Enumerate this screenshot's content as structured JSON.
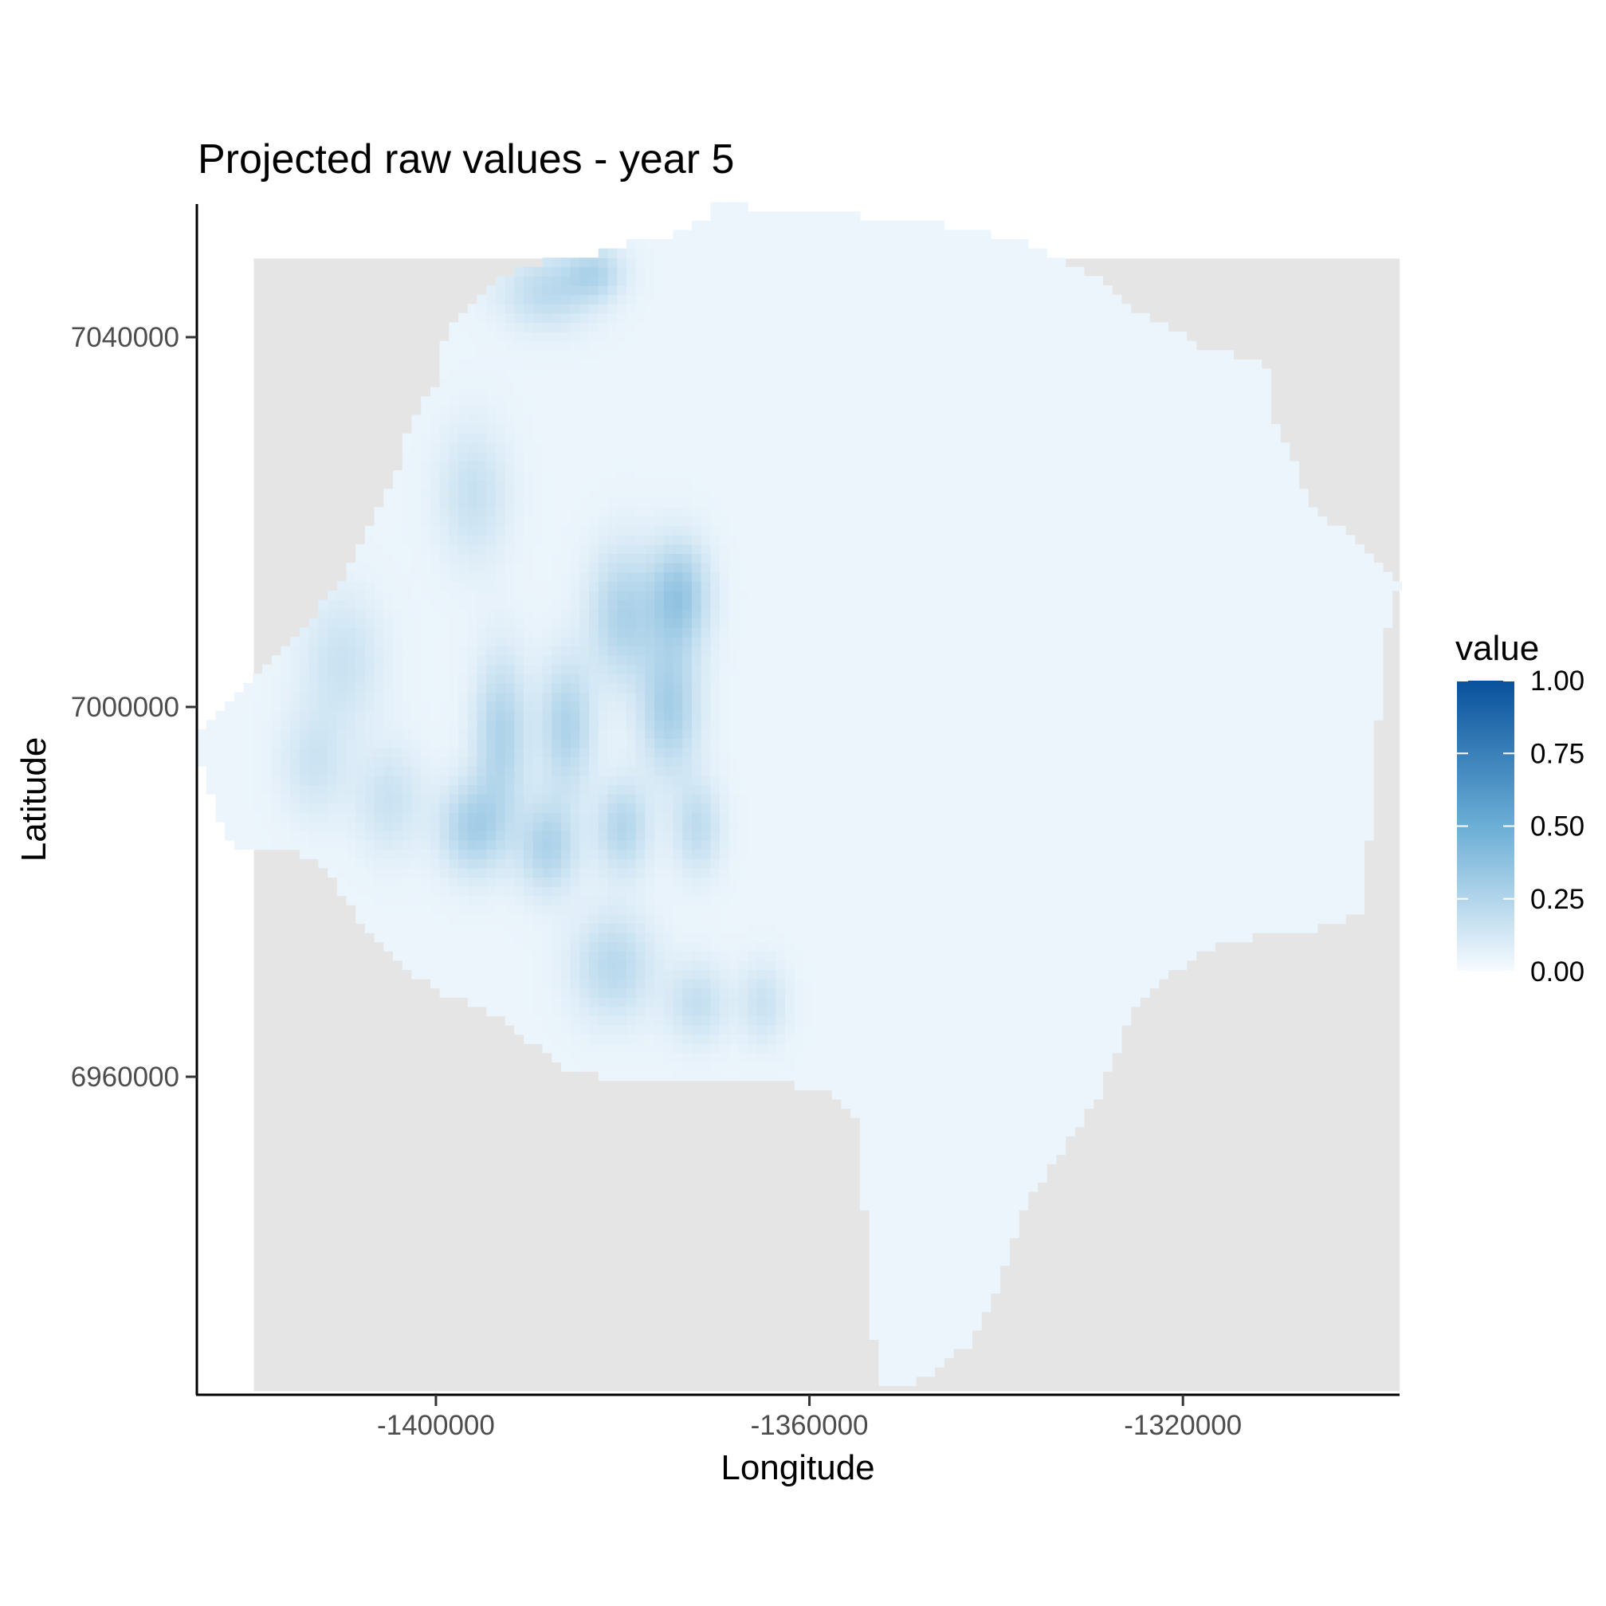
{
  "chart_data": {
    "type": "heatmap",
    "title": "Projected raw values - year 5",
    "xlabel": "Longitude",
    "ylabel": "Latitude",
    "xlim": [
      -1425600,
      -1296800
    ],
    "ylim": [
      6925600,
      7054400
    ],
    "x_ticks": [
      {
        "value": -1400000,
        "label": "-1400000"
      },
      {
        "value": -1360000,
        "label": "-1360000"
      },
      {
        "value": -1320000,
        "label": "-1320000"
      }
    ],
    "y_ticks": [
      {
        "value": 7040000,
        "label": "7040000"
      },
      {
        "value": 7000000,
        "label": "7000000"
      },
      {
        "value": 6960000,
        "label": "6960000"
      }
    ],
    "background_color": "#e5e5e5",
    "legend": {
      "title": "value",
      "placement": "right",
      "low_color": "#f7fbff",
      "high_color": "#08519c",
      "range": [
        0,
        1
      ],
      "breaks": [
        {
          "value": 1.0,
          "label": "1.00"
        },
        {
          "value": 0.75,
          "label": "0.75"
        },
        {
          "value": 0.5,
          "label": "0.50"
        },
        {
          "value": 0.25,
          "label": "0.25"
        },
        {
          "value": 0.0,
          "label": "0.00"
        }
      ]
    },
    "region": {
      "boundary": [
        [
          -1370200,
          7054400
        ],
        [
          -1366000,
          7054000
        ],
        [
          -1356000,
          7053200
        ],
        [
          -1346000,
          7052200
        ],
        [
          -1336000,
          7050000
        ],
        [
          -1330000,
          7047000
        ],
        [
          -1325000,
          7043000
        ],
        [
          -1318000,
          7039000
        ],
        [
          -1311000,
          7037000
        ],
        [
          -1310000,
          7030000
        ],
        [
          -1308000,
          7026000
        ],
        [
          -1306000,
          7021000
        ],
        [
          -1301000,
          7018000
        ],
        [
          -1298000,
          7015000
        ],
        [
          -1296800,
          7013500
        ],
        [
          -1298000,
          7010000
        ],
        [
          -1299000,
          7000000
        ],
        [
          -1300000,
          6986000
        ],
        [
          -1301000,
          6978000
        ],
        [
          -1305000,
          6976200
        ],
        [
          -1311000,
          6975600
        ],
        [
          -1317000,
          6974000
        ],
        [
          -1323000,
          6970000
        ],
        [
          -1326000,
          6966000
        ],
        [
          -1329000,
          6958000
        ],
        [
          -1333000,
          6952000
        ],
        [
          -1337000,
          6946000
        ],
        [
          -1340000,
          6937000
        ],
        [
          -1343000,
          6931000
        ],
        [
          -1347000,
          6928000
        ],
        [
          -1350000,
          6926500
        ],
        [
          -1353000,
          6926000
        ],
        [
          -1353000,
          6930000
        ],
        [
          -1354000,
          6944000
        ],
        [
          -1355000,
          6956000
        ],
        [
          -1357000,
          6958000
        ],
        [
          -1363000,
          6959500
        ],
        [
          -1373000,
          6960000
        ],
        [
          -1382000,
          6960000
        ],
        [
          -1386000,
          6961000
        ],
        [
          -1390000,
          6964000
        ],
        [
          -1394000,
          6967000
        ],
        [
          -1399000,
          6969000
        ],
        [
          -1404000,
          6972000
        ],
        [
          -1409000,
          6978000
        ],
        [
          -1412000,
          6983000
        ],
        [
          -1417000,
          6985000
        ],
        [
          -1422000,
          6985000
        ],
        [
          -1424000,
          6990000
        ],
        [
          -1425600,
          6995000
        ],
        [
          -1425000,
          6998000
        ],
        [
          -1421000,
          7002000
        ],
        [
          -1417000,
          7006000
        ],
        [
          -1413000,
          7010000
        ],
        [
          -1410000,
          7014000
        ],
        [
          -1407000,
          7020000
        ],
        [
          -1404000,
          7026000
        ],
        [
          -1403000,
          7030000
        ],
        [
          -1400000,
          7035000
        ],
        [
          -1399000,
          7040000
        ],
        [
          -1397000,
          7043000
        ],
        [
          -1394000,
          7046000
        ],
        [
          -1390000,
          7048000
        ],
        [
          -1385000,
          7048500
        ],
        [
          -1380000,
          7050000
        ],
        [
          -1375000,
          7051000
        ],
        [
          -1371000,
          7053000
        ]
      ],
      "base_value": 0.04,
      "hotspots": [
        {
          "x": -1388000,
          "y": 7045000,
          "sx": 3500,
          "sy": 2800,
          "value": 0.17
        },
        {
          "x": -1383000,
          "y": 7047000,
          "sx": 2200,
          "sy": 2000,
          "value": 0.18
        },
        {
          "x": -1396000,
          "y": 7023000,
          "sx": 2600,
          "sy": 5000,
          "value": 0.13
        },
        {
          "x": -1374000,
          "y": 7012000,
          "sx": 2200,
          "sy": 4000,
          "value": 0.3
        },
        {
          "x": -1380000,
          "y": 7010000,
          "sx": 2500,
          "sy": 5000,
          "value": 0.22
        },
        {
          "x": -1375000,
          "y": 7000000,
          "sx": 2200,
          "sy": 5000,
          "value": 0.25
        },
        {
          "x": -1393000,
          "y": 6997000,
          "sx": 2000,
          "sy": 6000,
          "value": 0.22
        },
        {
          "x": -1386000,
          "y": 6998000,
          "sx": 2000,
          "sy": 5000,
          "value": 0.22
        },
        {
          "x": -1396000,
          "y": 6987000,
          "sx": 2500,
          "sy": 3500,
          "value": 0.24
        },
        {
          "x": -1388000,
          "y": 6985000,
          "sx": 2200,
          "sy": 3500,
          "value": 0.22
        },
        {
          "x": -1380000,
          "y": 6987000,
          "sx": 2000,
          "sy": 3500,
          "value": 0.2
        },
        {
          "x": -1372000,
          "y": 6987000,
          "sx": 1800,
          "sy": 3500,
          "value": 0.16
        },
        {
          "x": -1381000,
          "y": 6972000,
          "sx": 3000,
          "sy": 4000,
          "value": 0.18
        },
        {
          "x": -1372000,
          "y": 6968000,
          "sx": 2200,
          "sy": 3000,
          "value": 0.14
        },
        {
          "x": -1365000,
          "y": 6968000,
          "sx": 1800,
          "sy": 3000,
          "value": 0.12
        },
        {
          "x": -1410000,
          "y": 7005000,
          "sx": 3000,
          "sy": 5000,
          "value": 0.12
        },
        {
          "x": -1413000,
          "y": 6994000,
          "sx": 2500,
          "sy": 4000,
          "value": 0.11
        },
        {
          "x": -1405000,
          "y": 6990000,
          "sx": 2500,
          "sy": 4000,
          "value": 0.12
        }
      ]
    }
  }
}
